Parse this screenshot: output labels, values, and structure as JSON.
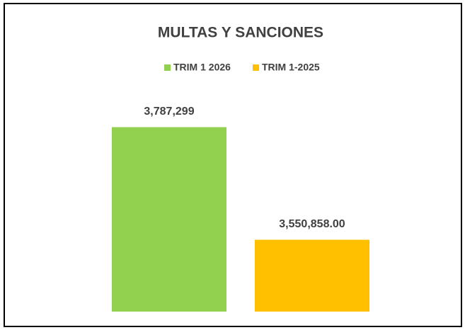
{
  "chart_data": {
    "type": "bar",
    "title": "MULTAS Y SANCIONES",
    "series": [
      {
        "name": "TRIM 1 2026",
        "color": "#92d050",
        "values": [
          3787299
        ],
        "value_labels": [
          "3,787,299"
        ]
      },
      {
        "name": "TRIM 1-2025",
        "color": "#ffc000",
        "values": [
          3550858
        ],
        "value_labels": [
          "3,550,858.00"
        ]
      }
    ],
    "ylim": [
      3400000,
      3800000
    ],
    "legend": "top"
  }
}
